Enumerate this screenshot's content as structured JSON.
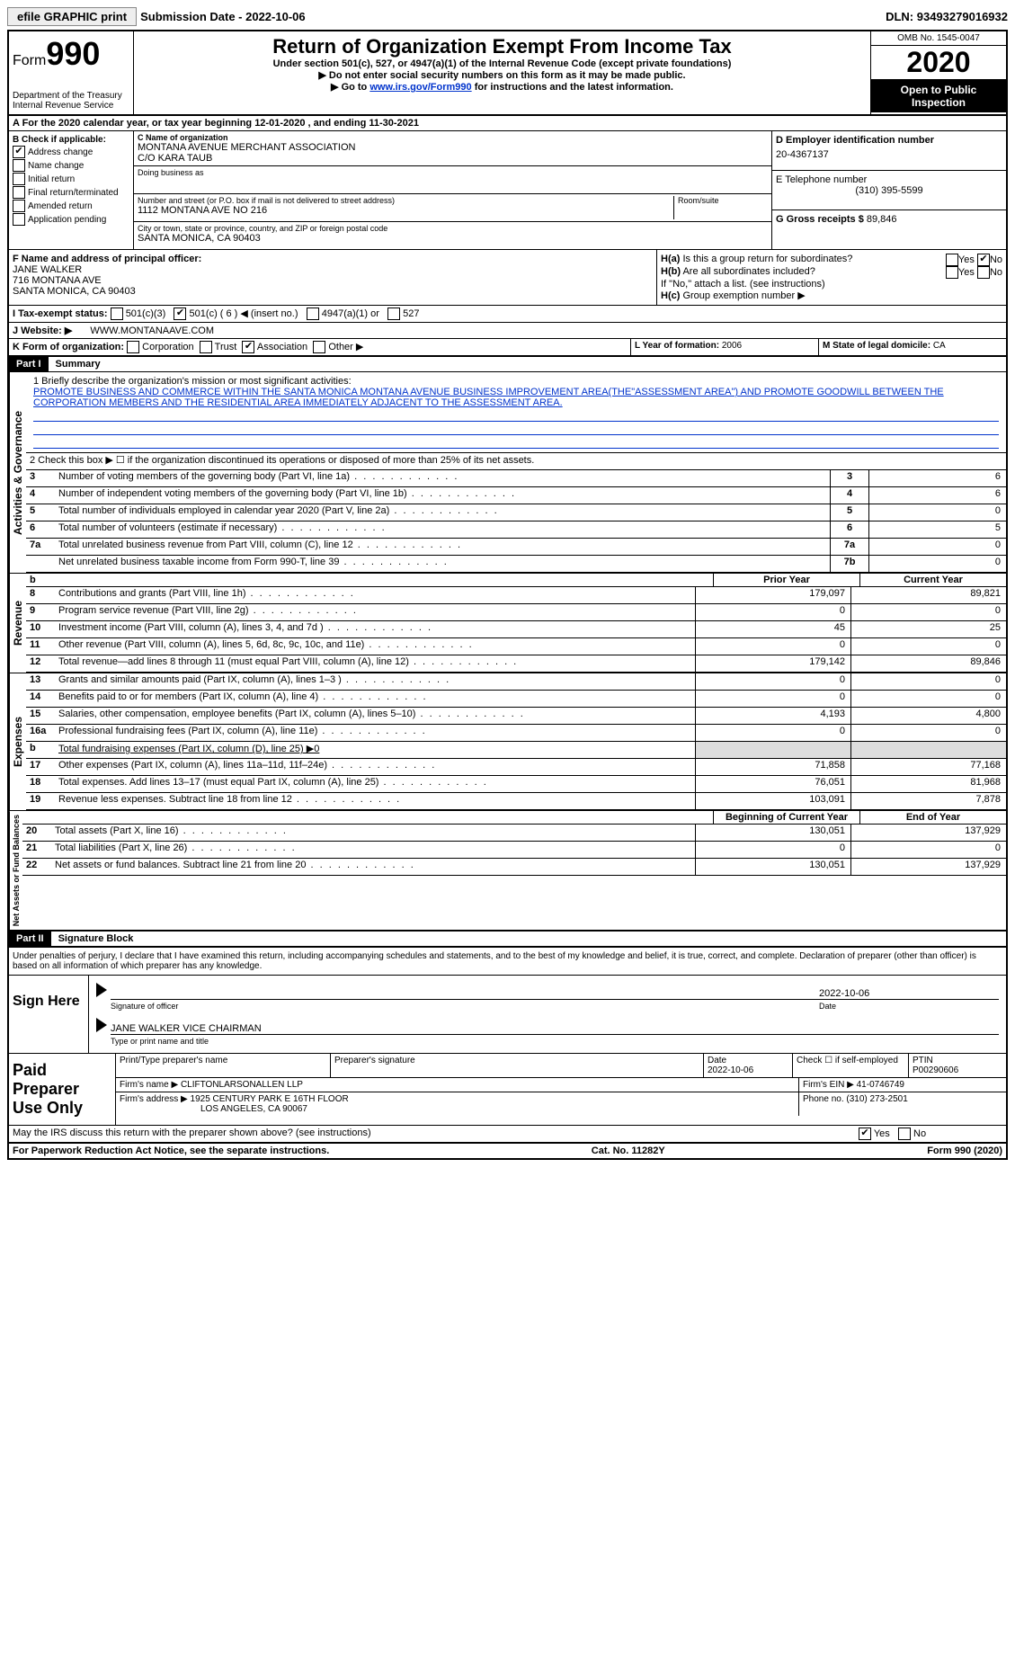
{
  "toolbar": {
    "efile": "efile GRAPHIC print",
    "sub_label": "Submission Date - ",
    "sub_date": "2022-10-06",
    "dln_label": "DLN: ",
    "dln": "93493279016932"
  },
  "header": {
    "form_word": "Form",
    "form_num": "990",
    "dept": "Department of the Treasury\nInternal Revenue Service",
    "title": "Return of Organization Exempt From Income Tax",
    "sub1": "Under section 501(c), 527, or 4947(a)(1) of the Internal Revenue Code (except private foundations)",
    "sub2": "▶ Do not enter social security numbers on this form as it may be made public.",
    "sub3_pre": "▶ Go to ",
    "sub3_link": "www.irs.gov/Form990",
    "sub3_post": " for instructions and the latest information.",
    "omb": "OMB No. 1545-0047",
    "year": "2020",
    "open": "Open to Public Inspection"
  },
  "rowA": {
    "text": "A For the 2020 calendar year, or tax year beginning 12-01-2020    , and ending 11-30-2021"
  },
  "colB": {
    "title": "B Check if applicable:",
    "items": [
      "Address change",
      "Name change",
      "Initial return",
      "Final return/terminated",
      "Amended return",
      "Application pending"
    ],
    "checked": [
      true,
      false,
      false,
      false,
      false,
      false
    ]
  },
  "colC": {
    "name_lbl": "C Name of organization",
    "name": "MONTANA AVENUE MERCHANT ASSOCIATION",
    "co": "C/O KARA TAUB",
    "dba_lbl": "Doing business as",
    "dba": "",
    "addr_lbl": "Number and street (or P.O. box if mail is not delivered to street address)",
    "room_lbl": "Room/suite",
    "addr": "1112 MONTANA AVE NO 216",
    "city_lbl": "City or town, state or province, country, and ZIP or foreign postal code",
    "city": "SANTA MONICA, CA  90403"
  },
  "colDE": {
    "d_lbl": "D Employer identification number",
    "d_val": "20-4367137",
    "e_lbl": "E Telephone number",
    "e_val": "(310) 395-5599",
    "g_lbl": "G Gross receipts $ ",
    "g_val": "89,846"
  },
  "colF": {
    "lbl": "F  Name and address of principal officer:",
    "name": "JANE WALKER",
    "addr1": "716 MONTANA AVE",
    "addr2": "SANTA MONICA, CA  90403"
  },
  "colH": {
    "ha": "H(a)  Is this a group return for subordinates?",
    "hb": "H(b)  Are all subordinates included?",
    "hnote": "If \"No,\" attach a list. (see instructions)",
    "hc": "H(c)  Group exemption number ▶",
    "yes": "Yes",
    "no": "No"
  },
  "rowI": {
    "lbl": "I    Tax-exempt status:",
    "opts": [
      "501(c)(3)",
      "501(c) ( 6 ) ◀ (insert no.)",
      "4947(a)(1) or",
      "527"
    ],
    "checked_idx": 1
  },
  "rowJ": {
    "lbl": "J   Website: ▶",
    "val": "WWW.MONTANAAVE.COM"
  },
  "rowK": {
    "lbl": "K Form of organization:",
    "opts": [
      "Corporation",
      "Trust",
      "Association",
      "Other ▶"
    ],
    "checked_idx": 2
  },
  "rowLM": {
    "l_lbl": "L Year of formation: ",
    "l_val": "2006",
    "m_lbl": "M State of legal domicile: ",
    "m_val": "CA"
  },
  "part1": {
    "part_lbl": "Part I",
    "part_title": "Summary",
    "line1_lbl": "1  Briefly describe the organization's mission or most significant activities:",
    "mission": "PROMOTE BUSINESS AND COMMERCE WITHIN THE SANTA MONICA MONTANA AVENUE BUSINESS IMPROVEMENT AREA(THE\"ASSESSMENT AREA\") AND PROMOTE GOODWILL BETWEEN THE CORPORATION MEMBERS AND THE RESIDENTIAL AREA IMMEDIATELY ADJACENT TO THE ASSESSMENT AREA.",
    "line2": "2   Check this box ▶ ☐  if the organization discontinued its operations or disposed of more than 25% of its net assets.",
    "gov_lines": [
      {
        "n": "3",
        "d": "Number of voting members of the governing body (Part VI, line 1a)",
        "box": "3",
        "v": "6"
      },
      {
        "n": "4",
        "d": "Number of independent voting members of the governing body (Part VI, line 1b)",
        "box": "4",
        "v": "6"
      },
      {
        "n": "5",
        "d": "Total number of individuals employed in calendar year 2020 (Part V, line 2a)",
        "box": "5",
        "v": "0"
      },
      {
        "n": "6",
        "d": "Total number of volunteers (estimate if necessary)",
        "box": "6",
        "v": "5"
      },
      {
        "n": "7a",
        "d": "Total unrelated business revenue from Part VIII, column (C), line 12",
        "box": "7a",
        "v": "0"
      },
      {
        "n": "",
        "d": "Net unrelated business taxable income from Form 990-T, line 39",
        "box": "7b",
        "v": "0"
      }
    ],
    "sections": {
      "gov": "Activities & Governance",
      "rev": "Revenue",
      "exp": "Expenses",
      "net": "Net Assets or Fund Balances"
    },
    "year_hdr": {
      "b": "b",
      "prior": "Prior Year",
      "curr": "Current Year"
    },
    "rev_lines": [
      {
        "n": "8",
        "d": "Contributions and grants (Part VIII, line 1h)",
        "p": "179,097",
        "c": "89,821"
      },
      {
        "n": "9",
        "d": "Program service revenue (Part VIII, line 2g)",
        "p": "0",
        "c": "0"
      },
      {
        "n": "10",
        "d": "Investment income (Part VIII, column (A), lines 3, 4, and 7d )",
        "p": "45",
        "c": "25"
      },
      {
        "n": "11",
        "d": "Other revenue (Part VIII, column (A), lines 5, 6d, 8c, 9c, 10c, and 11e)",
        "p": "0",
        "c": "0"
      },
      {
        "n": "12",
        "d": "Total revenue—add lines 8 through 11 (must equal Part VIII, column (A), line 12)",
        "p": "179,142",
        "c": "89,846"
      }
    ],
    "exp_lines": [
      {
        "n": "13",
        "d": "Grants and similar amounts paid (Part IX, column (A), lines 1–3 )",
        "p": "0",
        "c": "0"
      },
      {
        "n": "14",
        "d": "Benefits paid to or for members (Part IX, column (A), line 4)",
        "p": "0",
        "c": "0"
      },
      {
        "n": "15",
        "d": "Salaries, other compensation, employee benefits (Part IX, column (A), lines 5–10)",
        "p": "4,193",
        "c": "4,800"
      },
      {
        "n": "16a",
        "d": "Professional fundraising fees (Part IX, column (A), line 11e)",
        "p": "0",
        "c": "0"
      },
      {
        "n": "b",
        "d": "Total fundraising expenses (Part IX, column (D), line 25) ▶0",
        "p": "",
        "c": ""
      },
      {
        "n": "17",
        "d": "Other expenses (Part IX, column (A), lines 11a–11d, 11f–24e)",
        "p": "71,858",
        "c": "77,168"
      },
      {
        "n": "18",
        "d": "Total expenses. Add lines 13–17 (must equal Part IX, column (A), line 25)",
        "p": "76,051",
        "c": "81,968"
      },
      {
        "n": "19",
        "d": "Revenue less expenses. Subtract line 18 from line 12",
        "p": "103,091",
        "c": "7,878"
      }
    ],
    "net_hdr": {
      "begin": "Beginning of Current Year",
      "end": "End of Year"
    },
    "net_lines": [
      {
        "n": "20",
        "d": "Total assets (Part X, line 16)",
        "p": "130,051",
        "c": "137,929"
      },
      {
        "n": "21",
        "d": "Total liabilities (Part X, line 26)",
        "p": "0",
        "c": "0"
      },
      {
        "n": "22",
        "d": "Net assets or fund balances. Subtract line 21 from line 20",
        "p": "130,051",
        "c": "137,929"
      }
    ]
  },
  "part2": {
    "part_lbl": "Part II",
    "part_title": "Signature Block",
    "penalties": "Under penalties of perjury, I declare that I have examined this return, including accompanying schedules and statements, and to the best of my knowledge and belief, it is true, correct, and complete. Declaration of preparer (other than officer) is based on all information of which preparer has any knowledge.",
    "sign_here": "Sign Here",
    "sig_officer": "Signature of officer",
    "sig_date": "2022-10-06",
    "date_lbl": "Date",
    "sig_name": "JANE WALKER VICE CHAIRMAN",
    "type_lbl": "Type or print name and title",
    "paid": "Paid Preparer Use Only",
    "prep_name_lbl": "Print/Type preparer's name",
    "prep_sig_lbl": "Preparer's signature",
    "prep_date_lbl": "Date",
    "prep_date": "2022-10-06",
    "self_lbl": "Check ☐ if self-employed",
    "ptin_lbl": "PTIN",
    "ptin": "P00290606",
    "firm_name_lbl": "Firm's name    ▶",
    "firm_name": "CLIFTONLARSONALLEN LLP",
    "firm_ein_lbl": "Firm's EIN ▶",
    "firm_ein": "41-0746749",
    "firm_addr_lbl": "Firm's address ▶",
    "firm_addr1": "1925 CENTURY PARK E 16TH FLOOR",
    "firm_addr2": "LOS ANGELES, CA  90067",
    "phone_lbl": "Phone no. ",
    "phone": "(310) 273-2501",
    "discuss": "May the IRS discuss this return with the preparer shown above? (see instructions)",
    "discuss_yes": "Yes",
    "discuss_no": "No"
  },
  "footer": {
    "left": "For Paperwork Reduction Act Notice, see the separate instructions.",
    "mid": "Cat. No. 11282Y",
    "right": "Form 990 (2020)"
  }
}
